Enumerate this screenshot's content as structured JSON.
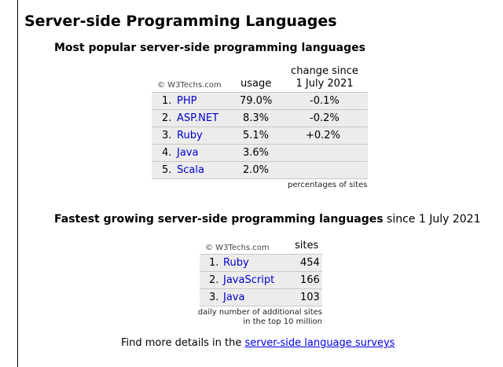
{
  "page_title": "Server-side Programming Languages",
  "popular": {
    "heading": "Most popular server-side programming languages",
    "copyright": "© W3Techs.com",
    "col_usage": "usage",
    "col_change_line1": "change since",
    "col_change_line2": "1 July 2021",
    "rows": [
      {
        "rank": "1.",
        "name": "PHP",
        "usage": "79.0%",
        "change": "-0.1%"
      },
      {
        "rank": "2.",
        "name": "ASP.NET",
        "usage": "8.3%",
        "change": "-0.2%"
      },
      {
        "rank": "3.",
        "name": "Ruby",
        "usage": "5.1%",
        "change": "+0.2%"
      },
      {
        "rank": "4.",
        "name": "Java",
        "usage": "3.6%",
        "change": ""
      },
      {
        "rank": "5.",
        "name": "Scala",
        "usage": "2.0%",
        "change": ""
      }
    ],
    "footnote": "percentages of sites"
  },
  "growing": {
    "heading_bold": "Fastest growing server-side programming languages",
    "heading_rest": " since 1 July 2021",
    "copyright": "© W3Techs.com",
    "col_sites": "sites",
    "rows": [
      {
        "rank": "1.",
        "name": "Ruby",
        "sites": "454"
      },
      {
        "rank": "2.",
        "name": "JavaScript",
        "sites": "166"
      },
      {
        "rank": "3.",
        "name": "Java",
        "sites": "103"
      }
    ],
    "footnote_line1": "daily number of additional sites",
    "footnote_line2": "in the top 10 million"
  },
  "more": {
    "prefix": "Find more details in the ",
    "link_text": "server-side language surveys"
  },
  "colors": {
    "link": "#0000cc",
    "row_bg": "#ececec"
  }
}
